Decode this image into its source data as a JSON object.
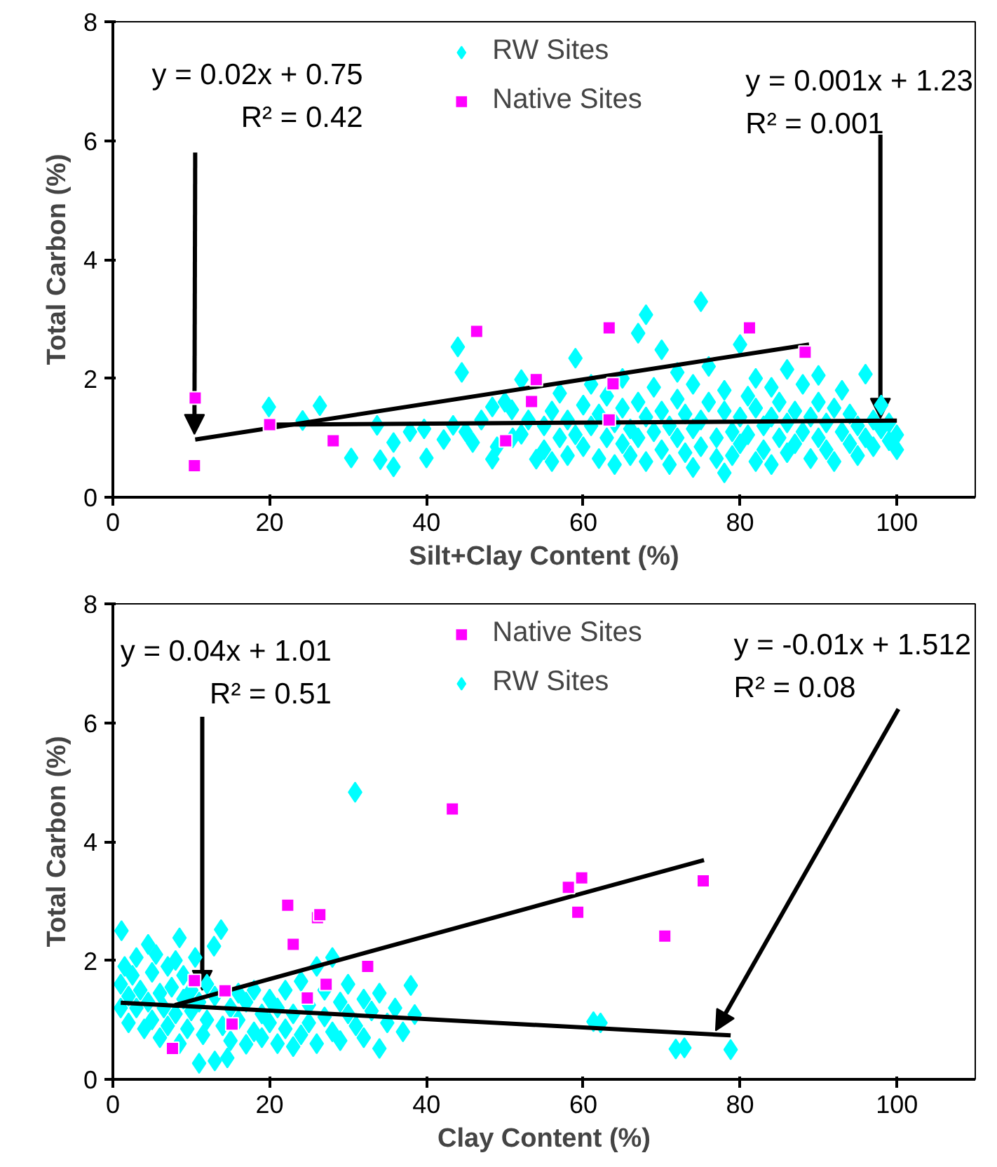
{
  "chart_data": [
    {
      "type": "scatter",
      "xlabel": "Silt+Clay Content (%)",
      "ylabel": "Total Carbon (%)",
      "xlim": [
        0,
        110
      ],
      "ylim": [
        0,
        8
      ],
      "xticks": [
        0,
        20,
        40,
        60,
        80,
        100
      ],
      "yticks": [
        0,
        2,
        4,
        6,
        8
      ],
      "grid": false,
      "legend": "top",
      "series": [
        {
          "name": "RW Sites",
          "color": "#00ffff",
          "marker": "diamond",
          "x": [
            19.9,
            24.2,
            26.4,
            30.4,
            34.1,
            35.8,
            35.8,
            33.7,
            37.9,
            40,
            39.7,
            42.2,
            43.4,
            45.9,
            48.4,
            48.4,
            50.9,
            52.1,
            52.1,
            54,
            44,
            44.5,
            45,
            47,
            49,
            50,
            51,
            53,
            55,
            55,
            56,
            56,
            57,
            57,
            58,
            58,
            59,
            59,
            60,
            60,
            61,
            61,
            62,
            62,
            63,
            63,
            64,
            64,
            65,
            65,
            65,
            66,
            66,
            67,
            67,
            67,
            68,
            68,
            68,
            69,
            69,
            70,
            70,
            70,
            71,
            71,
            72,
            72,
            72,
            73,
            73,
            74,
            74,
            74,
            75,
            75,
            75,
            76,
            76,
            77,
            77,
            78,
            78,
            78,
            79,
            79,
            80,
            80,
            80,
            81,
            81,
            82,
            82,
            82,
            83,
            83,
            84,
            84,
            84,
            85,
            85,
            86,
            86,
            86,
            87,
            87,
            88,
            88,
            89,
            89,
            90,
            90,
            90,
            91,
            91,
            92,
            92,
            93,
            93,
            94,
            94,
            95,
            95,
            96,
            96,
            97,
            97,
            98,
            98,
            99,
            99,
            100,
            100
          ],
          "values": [
            1.52,
            1.29,
            1.54,
            0.66,
            0.63,
            0.51,
            0.92,
            1.21,
            1.1,
            0.66,
            1.15,
            0.97,
            1.21,
            0.92,
            0.64,
            1.52,
            1.47,
            1.98,
            1.06,
            0.64,
            2.53,
            2.1,
            1.1,
            1.3,
            0.85,
            1.6,
            1.0,
            1.3,
            1.2,
            0.8,
            1.45,
            0.6,
            1.0,
            1.75,
            1.3,
            0.7,
            2.34,
            1.05,
            1.55,
            0.85,
            1.2,
            1.9,
            0.65,
            1.4,
            1.0,
            1.7,
            0.55,
            1.25,
            1.5,
            0.9,
            2.0,
            1.15,
            0.7,
            1.6,
            2.76,
            1.0,
            1.35,
            3.07,
            0.6,
            1.85,
            1.1,
            0.8,
            2.48,
            1.45,
            1.2,
            0.55,
            1.65,
            1.0,
            2.1,
            0.75,
            1.4,
            1.9,
            0.5,
            1.15,
            3.29,
            1.3,
            0.85,
            1.6,
            2.2,
            1.0,
            0.65,
            0.41,
            1.45,
            1.8,
            1.1,
            0.7,
            2.57,
            1.35,
            0.9,
            1.7,
            1.05,
            0.6,
            1.5,
            2.0,
            1.2,
            0.8,
            1.85,
            1.35,
            0.55,
            1.0,
            1.6,
            0.75,
            2.15,
            1.25,
            1.45,
            0.9,
            1.1,
            1.9,
            0.65,
            1.35,
            1.6,
            1.0,
            2.05,
            0.8,
            1.25,
            1.5,
            0.6,
            1.1,
            1.8,
            0.9,
            1.4,
            1.2,
            0.7,
            2.07,
            1.0,
            1.3,
            0.85,
            1.15,
            1.55,
            0.95,
            1.25,
            1.05,
            0.8
          ]
        },
        {
          "name": "Native Sites",
          "color": "#ff00ff",
          "marker": "square",
          "x": [
            10.5,
            10.4,
            20,
            28.1,
            46.4,
            50.1,
            54,
            53.4,
            63.3,
            63.8,
            63.3,
            81.2,
            88.3
          ],
          "values": [
            1.67,
            0.53,
            1.22,
            0.95,
            2.79,
            0.95,
            1.98,
            1.61,
            2.85,
            1.91,
            1.3,
            2.85,
            2.44
          ]
        },
        {
          "type": "line",
          "color": "#000000",
          "x": [
            10.5,
            88.8
          ],
          "values": [
            0.97,
            2.57
          ]
        },
        {
          "type": "line",
          "color": "#000000",
          "x": [
            20,
            100
          ],
          "values": [
            1.22,
            1.29
          ]
        }
      ],
      "annotations": [
        {
          "text": "y = 0.02x + 0.75\nR² = 0.42",
          "x": 10.4,
          "y": 1.06
        },
        {
          "text": "y = 0.001x + 1.23\nR² = 0.001",
          "x": 97.9,
          "y": 1.33
        }
      ]
    },
    {
      "type": "scatter",
      "xlabel": "Clay Content (%)",
      "ylabel": "Total Carbon (%)",
      "xlim": [
        0,
        110
      ],
      "ylim": [
        0,
        8
      ],
      "xticks": [
        0,
        20,
        40,
        60,
        80,
        100
      ],
      "yticks": [
        0,
        2,
        4,
        6,
        8
      ],
      "grid": false,
      "legend": "top",
      "series": [
        {
          "name": "Native Sites",
          "color": "#ff00ff",
          "marker": "square",
          "x": [
            10.4,
            7.6,
            14.3,
            15.2,
            22.3,
            23,
            26.1,
            26.4,
            24.8,
            27.2,
            32.5,
            43.3,
            58.1,
            59.8,
            59.3,
            70.4,
            75.3
          ],
          "values": [
            1.66,
            0.52,
            1.49,
            0.93,
            2.93,
            2.27,
            2.72,
            2.77,
            1.37,
            1.6,
            1.9,
            4.55,
            3.23,
            3.39,
            2.81,
            2.41,
            3.34
          ]
        },
        {
          "name": "RW Sites",
          "color": "#00ffff",
          "marker": "diamond",
          "x": [
            1.1,
            1,
            1,
            1.5,
            2,
            2,
            2.5,
            3,
            3,
            3.5,
            4,
            4.5,
            4.5,
            5,
            5,
            5.5,
            6,
            6,
            6.5,
            7,
            7,
            7.5,
            8,
            8,
            8.5,
            8.5,
            9,
            9,
            9.5,
            10,
            10,
            10.5,
            11,
            11,
            11.5,
            12,
            12,
            12.9,
            13,
            13,
            13.8,
            14,
            14.6,
            15,
            15,
            16,
            16,
            17,
            17,
            18,
            18,
            19,
            19,
            20,
            20,
            21,
            21,
            22,
            22,
            23,
            23,
            24,
            24,
            25,
            25,
            26,
            26,
            27,
            27,
            28,
            28,
            29,
            29,
            30,
            30,
            30.9,
            31,
            32,
            32,
            33,
            34,
            34,
            35,
            36,
            37,
            38,
            38.5,
            61.3,
            62.2,
            71.8,
            72.9,
            78.8
          ],
          "values": [
            2.5,
            1.6,
            1.2,
            1.9,
            1.4,
            0.95,
            1.75,
            1.2,
            2.05,
            1.5,
            0.85,
            2.27,
            1.3,
            1.8,
            1.0,
            2.1,
            1.45,
            0.7,
            1.2,
            1.9,
            0.9,
            1.55,
            2.0,
            1.1,
            2.38,
            0.6,
            1.35,
            1.75,
            0.85,
            1.5,
            1.15,
            2.05,
            0.27,
            1.3,
            0.75,
            1.6,
            1.0,
            2.24,
            0.31,
            1.4,
            2.52,
            0.9,
            0.36,
            1.2,
            0.65,
            1.45,
            1.0,
            0.59,
            1.3,
            0.8,
            1.5,
            1.1,
            0.7,
            1.35,
            0.95,
            1.2,
            0.6,
            1.5,
            0.85,
            1.1,
            0.55,
            1.65,
            0.75,
            1.25,
            0.95,
            1.9,
            0.6,
            1.05,
            1.5,
            0.8,
            2.05,
            1.3,
            0.65,
            1.1,
            1.6,
            4.83,
            0.9,
            1.35,
            0.7,
            1.15,
            0.52,
            1.45,
            0.95,
            1.2,
            0.8,
            1.58,
            1.09,
            0.97,
            0.95,
            0.51,
            0.53,
            0.5
          ]
        },
        {
          "type": "line",
          "color": "#000000",
          "x": [
            7.9,
            75.4
          ],
          "values": [
            1.25,
            3.69
          ]
        },
        {
          "type": "line",
          "color": "#000000",
          "x": [
            1,
            78.8
          ],
          "values": [
            1.29,
            0.74
          ]
        }
      ],
      "annotations": [
        {
          "text": "y = 0.04x + 1.01\nR² = 0.51",
          "x": 11.4,
          "y": 1.5
        },
        {
          "text": "y = -0.01x + 1.512\nR² = 0.08",
          "x": 76.9,
          "y": 0.82
        }
      ]
    }
  ]
}
